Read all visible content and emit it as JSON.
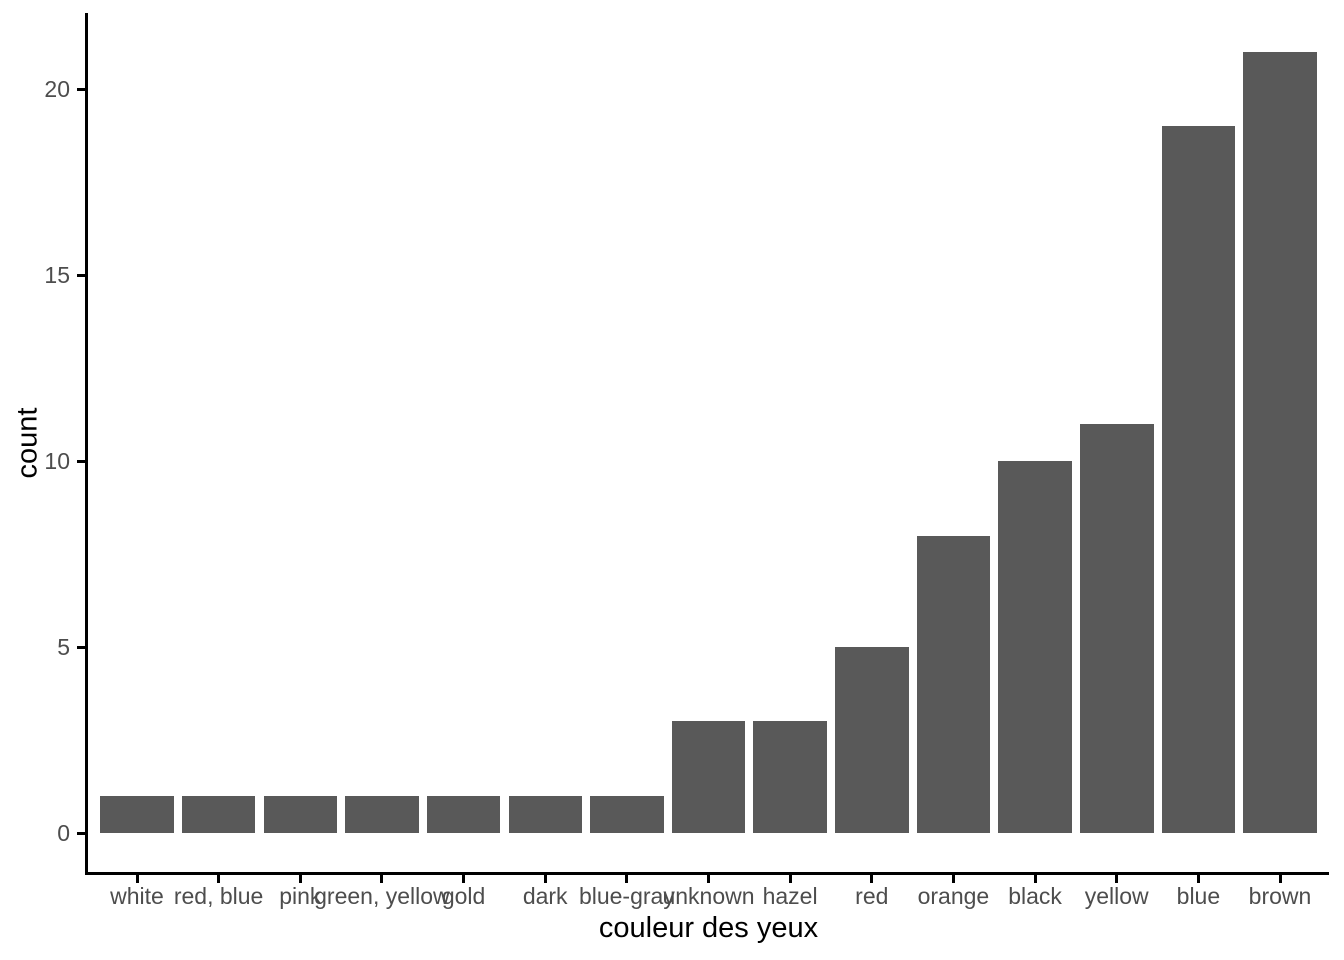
{
  "chart_data": {
    "type": "bar",
    "title": "",
    "xlabel": "couleur des yeux",
    "ylabel": "count",
    "categories": [
      "white",
      "red, blue",
      "pink",
      "green, yellow",
      "gold",
      "dark",
      "blue-gray",
      "unknown",
      "hazel",
      "red",
      "orange",
      "black",
      "yellow",
      "blue",
      "brown"
    ],
    "values": [
      1,
      1,
      1,
      1,
      1,
      1,
      1,
      3,
      3,
      5,
      8,
      10,
      11,
      19,
      21
    ],
    "yticks": [
      0,
      5,
      10,
      15,
      20
    ],
    "ylim": [
      0,
      22.05
    ],
    "grid": false,
    "legend": false,
    "bar_color": "#595959",
    "axis_line_color": "#000000",
    "axis_text_color": "#4d4d4d",
    "axis_title_color": "#000000",
    "background_color": "#ffffff"
  }
}
